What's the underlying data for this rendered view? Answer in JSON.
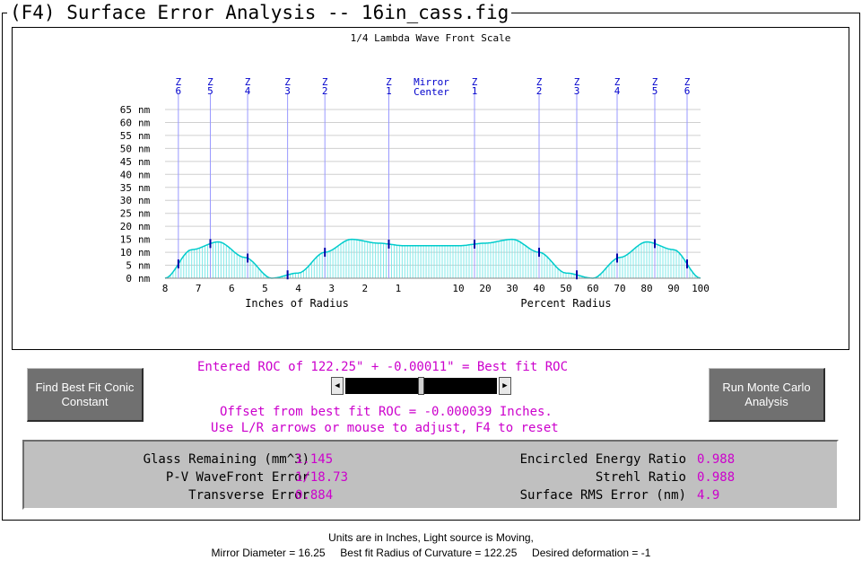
{
  "window_title": "(F4)  Surface Error Analysis -- 16in_cass.fig",
  "colors": {
    "accent": "#cc00cc",
    "curve": "#00cccc",
    "zone": "#9999ff",
    "zone_label": "#0000cc",
    "button_bg": "#707070"
  },
  "chart_data": {
    "type": "area",
    "title": "1/4 Lambda Wave Front Scale",
    "ylabel_unit": "nm",
    "ylim": [
      0,
      65
    ],
    "y_ticks": [
      0,
      5,
      10,
      15,
      20,
      25,
      30,
      35,
      40,
      45,
      50,
      55,
      60,
      65
    ],
    "x_ticks_left": [
      "8",
      "7",
      "6",
      "5",
      "4",
      "3",
      "2",
      "1"
    ],
    "x_ticks_right": [
      "10",
      "20",
      "30",
      "40",
      "50",
      "60",
      "70",
      "80",
      "90",
      "100"
    ],
    "xlabel_left": "Inches of Radius",
    "xlabel_right": "Percent Radius",
    "center_label_line1": "Mirror",
    "center_label_line2": "Center",
    "zones_left": [
      {
        "z": "Z",
        "n": "6"
      },
      {
        "z": "Z",
        "n": "5"
      },
      {
        "z": "Z",
        "n": "4"
      },
      {
        "z": "Z",
        "n": "3"
      },
      {
        "z": "Z",
        "n": "2"
      },
      {
        "z": "Z",
        "n": "1"
      }
    ],
    "zones_right": [
      {
        "z": "Z",
        "n": "1"
      },
      {
        "z": "Z",
        "n": "2"
      },
      {
        "z": "Z",
        "n": "3"
      },
      {
        "z": "Z",
        "n": "4"
      },
      {
        "z": "Z",
        "n": "5"
      },
      {
        "z": "Z",
        "n": "6"
      }
    ],
    "profile_percent_radius": [
      0,
      10,
      20,
      30,
      40,
      50,
      60,
      70,
      80,
      90,
      100
    ],
    "profile_nm": [
      12.5,
      12.5,
      13.5,
      15,
      10,
      2,
      0,
      8,
      14,
      11,
      0
    ]
  },
  "buttons": {
    "best_fit_conic": "Find Best Fit Conic Constant",
    "monte_carlo": "Run Monte Carlo Analysis"
  },
  "roc": {
    "entered_line": "Entered ROC of 122.25\" + -0.00011\" = Best fit ROC",
    "offset_line": "Offset from best fit ROC = -0.000039 Inches.",
    "hint_line": "Use L/R arrows or mouse to adjust, F4 to reset",
    "slider_left_icon": "arrow-left-icon",
    "slider_right_icon": "arrow-right-icon"
  },
  "results": {
    "glass_remaining_label": "Glass Remaining (mm^3)",
    "glass_remaining_value": "1.145",
    "pv_wavefront_label": "P-V WaveFront Error",
    "pv_wavefront_value": "1/18.73",
    "transverse_label": "Transverse Error",
    "transverse_value": "0.884",
    "encircled_energy_label": "Encircled Energy Ratio",
    "encircled_energy_value": "0.988",
    "strehl_label": "Strehl Ratio",
    "strehl_value": "0.988",
    "surface_rms_label": "Surface RMS Error (nm)",
    "surface_rms_value": "4.9"
  },
  "footer": {
    "line1": "Units are in Inches, Light source is Moving,",
    "line2": "Mirror Diameter = 16.25     Best fit Radius of Curvature = 122.25     Desired deformation = -1"
  }
}
